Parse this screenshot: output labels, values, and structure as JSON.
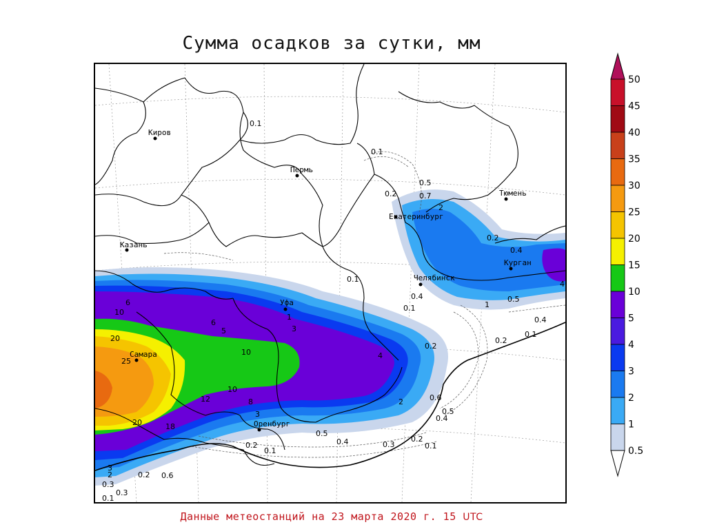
{
  "title": "Сумма осадков за сутки, мм",
  "footer": {
    "text": "Данные метеостанций на 23 марта 2020 г. 15",
    "utc": "UTC"
  },
  "cities": [
    {
      "name": "Киров"
    },
    {
      "name": "Пермь"
    },
    {
      "name": "Казань"
    },
    {
      "name": "Екатеринбург"
    },
    {
      "name": "Тюмень"
    },
    {
      "name": "Уфа"
    },
    {
      "name": "Челябинск"
    },
    {
      "name": "Курган"
    },
    {
      "name": "Самара"
    },
    {
      "name": "Оренбург"
    }
  ],
  "contour_labels": [
    "0.1",
    "0.1",
    "0.2",
    "0.7",
    "0.5",
    "0.1",
    "0.2",
    "0.4",
    "1",
    "2",
    "4",
    "0.4",
    "0.1",
    "0.2",
    "0.5",
    "0.4",
    "0.1",
    "0.3",
    "0.2",
    "0.1",
    "0.4",
    "0.3",
    "0.2",
    "0.1",
    "0.5",
    "0.6",
    "0.5",
    "0.4",
    "0.2",
    "6",
    "10",
    "20",
    "25",
    "10",
    "12",
    "10",
    "8",
    "3",
    "4",
    "2",
    "6",
    "5",
    "3",
    "1",
    "20",
    "18",
    "2",
    "3",
    "0.2",
    "0.6",
    "0.3",
    "0.1"
  ],
  "legend": {
    "levels": [
      "50",
      "45",
      "40",
      "35",
      "30",
      "25",
      "20",
      "15",
      "10",
      "5",
      "4",
      "3",
      "2",
      "1",
      "0.5"
    ],
    "colors": [
      "#b0105a",
      "#c8102a",
      "#a00a14",
      "#c8401a",
      "#e86a10",
      "#f59a10",
      "#f5c400",
      "#f5f000",
      "#16c816",
      "#6a00d8",
      "#4a1ae0",
      "#0a3af0",
      "#1a7af0",
      "#3aaaf5",
      "#c9d6ec"
    ]
  }
}
